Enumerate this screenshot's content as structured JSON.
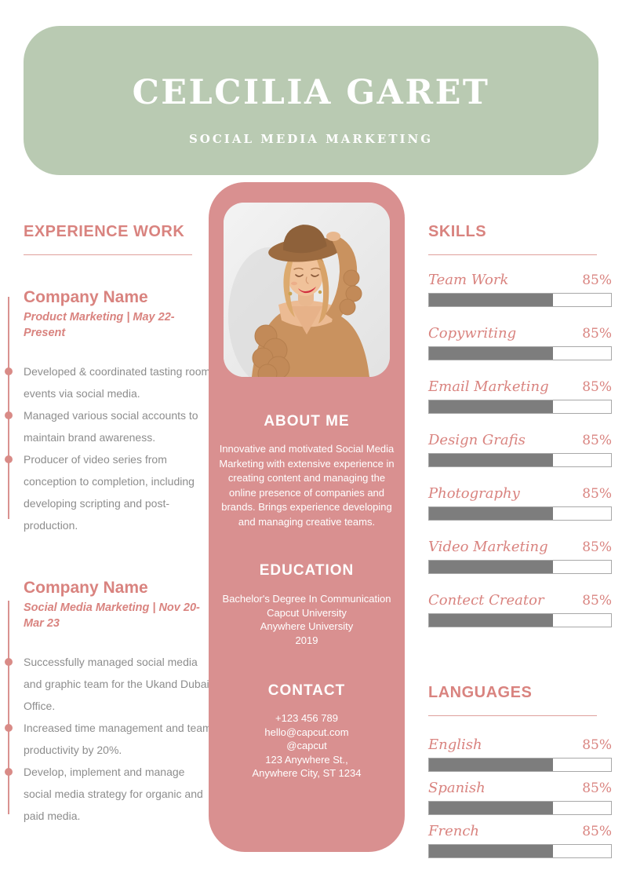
{
  "colors": {
    "header_green": "#b9cab2",
    "profile_pink": "#d99090",
    "accent_pink": "#d9837f",
    "timeline_pink": "#d98b87",
    "body_gray": "#8d8d8d",
    "bar_fill_gray": "#7d7d7d",
    "white": "#ffffff"
  },
  "header": {
    "name": "CELCILIA GARET",
    "role": "SOCIAL MEDIA MARKETING"
  },
  "experience": {
    "title": "EXPERIENCE WORK",
    "jobs": [
      {
        "company": "Company Name",
        "meta": "Product Marketing | May 22-Present",
        "bullets": [
          "Developed & coordinated tasting room events via social media.",
          "Managed various social accounts to maintain brand awareness.",
          "Producer of video series from conception to completion, including developing scripting and post-production."
        ]
      },
      {
        "company": "Company Name",
        "meta": "Social Media Marketing | Nov 20-Mar 23",
        "bullets": [
          "Successfully managed social media and graphic team for the Ukand Dubai Office.",
          "Increased time management and team productivity by 20%.",
          "Develop, implement and manage social media strategy for organic and paid media."
        ]
      }
    ]
  },
  "profile": {
    "photo": "portrait of woman in brown hat and knit cardigan",
    "about_title": "ABOUT ME",
    "about_text": "Innovative and motivated Social Media Marketing with extensive experience in creating content and managing the online presence of companies and brands. Brings experience developing and managing creative teams.",
    "education_title": "EDUCATION",
    "education_lines": [
      "Bachelor's Degree In Communication",
      "Capcut University",
      "Anywhere University",
      "2019"
    ],
    "contact_title": "CONTACT",
    "contact_lines": [
      "+123  456 789",
      "hello@capcut.com",
      "@capcut",
      "123 Anywhere St.,",
      "Anywhere City, ST 1234"
    ]
  },
  "skills": {
    "title": "SKILLS",
    "items": [
      {
        "label": "Team Work",
        "percent": "85%",
        "fill": 68
      },
      {
        "label": "Copywriting",
        "percent": "85%",
        "fill": 68
      },
      {
        "label": "Email Marketing",
        "percent": "85%",
        "fill": 68
      },
      {
        "label": "Design Grafis",
        "percent": "85%",
        "fill": 68
      },
      {
        "label": "Photography",
        "percent": "85%",
        "fill": 68
      },
      {
        "label": "Video Marketing",
        "percent": "85%",
        "fill": 68
      },
      {
        "label": "Contect Creator",
        "percent": "85%",
        "fill": 68
      }
    ]
  },
  "languages": {
    "title": "LANGUAGES",
    "items": [
      {
        "label": "English",
        "percent": "85%",
        "fill": 68
      },
      {
        "label": "Spanish",
        "percent": "85%",
        "fill": 68
      },
      {
        "label": "French",
        "percent": "85%",
        "fill": 68
      }
    ]
  }
}
